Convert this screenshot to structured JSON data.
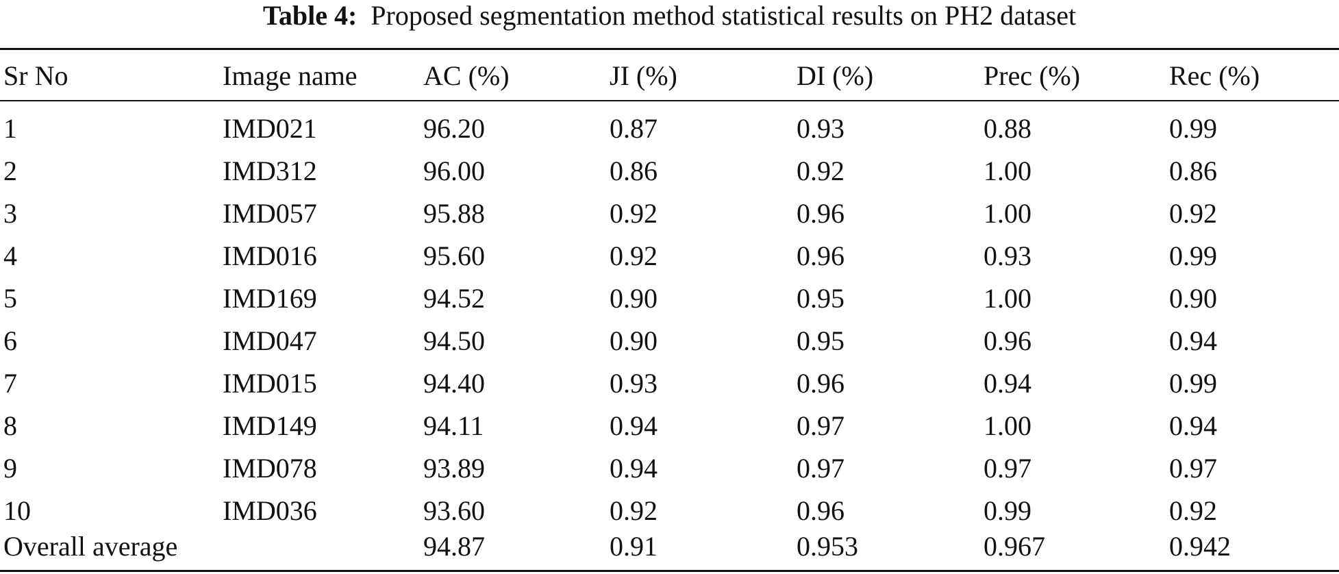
{
  "caption": {
    "label": "Table 4:",
    "text": "Proposed segmentation method statistical results on PH2 dataset"
  },
  "table": {
    "headers": [
      "Sr No",
      "Image name",
      "AC (%)",
      "JI (%)",
      "DI (%)",
      "Prec (%)",
      "Rec (%)"
    ],
    "rows": [
      [
        "1",
        "IMD021",
        "96.20",
        "0.87",
        "0.93",
        "0.88",
        "0.99"
      ],
      [
        "2",
        "IMD312",
        "96.00",
        "0.86",
        "0.92",
        "1.00",
        "0.86"
      ],
      [
        "3",
        "IMD057",
        "95.88",
        "0.92",
        "0.96",
        "1.00",
        "0.92"
      ],
      [
        "4",
        "IMD016",
        "95.60",
        "0.92",
        "0.96",
        "0.93",
        "0.99"
      ],
      [
        "5",
        "IMD169",
        "94.52",
        "0.90",
        "0.95",
        "1.00",
        "0.90"
      ],
      [
        "6",
        "IMD047",
        "94.50",
        "0.90",
        "0.95",
        "0.96",
        "0.94"
      ],
      [
        "7",
        "IMD015",
        "94.40",
        "0.93",
        "0.96",
        "0.94",
        "0.99"
      ],
      [
        "8",
        "IMD149",
        "94.11",
        "0.94",
        "0.97",
        "1.00",
        "0.94"
      ],
      [
        "9",
        "IMD078",
        "93.89",
        "0.94",
        "0.97",
        "0.97",
        "0.97"
      ],
      [
        "10",
        "IMD036",
        "93.60",
        "0.92",
        "0.96",
        "0.99",
        "0.92"
      ]
    ],
    "average": [
      "Overall average",
      "",
      "94.87",
      "0.91",
      "0.953",
      "0.967",
      "0.942"
    ]
  }
}
